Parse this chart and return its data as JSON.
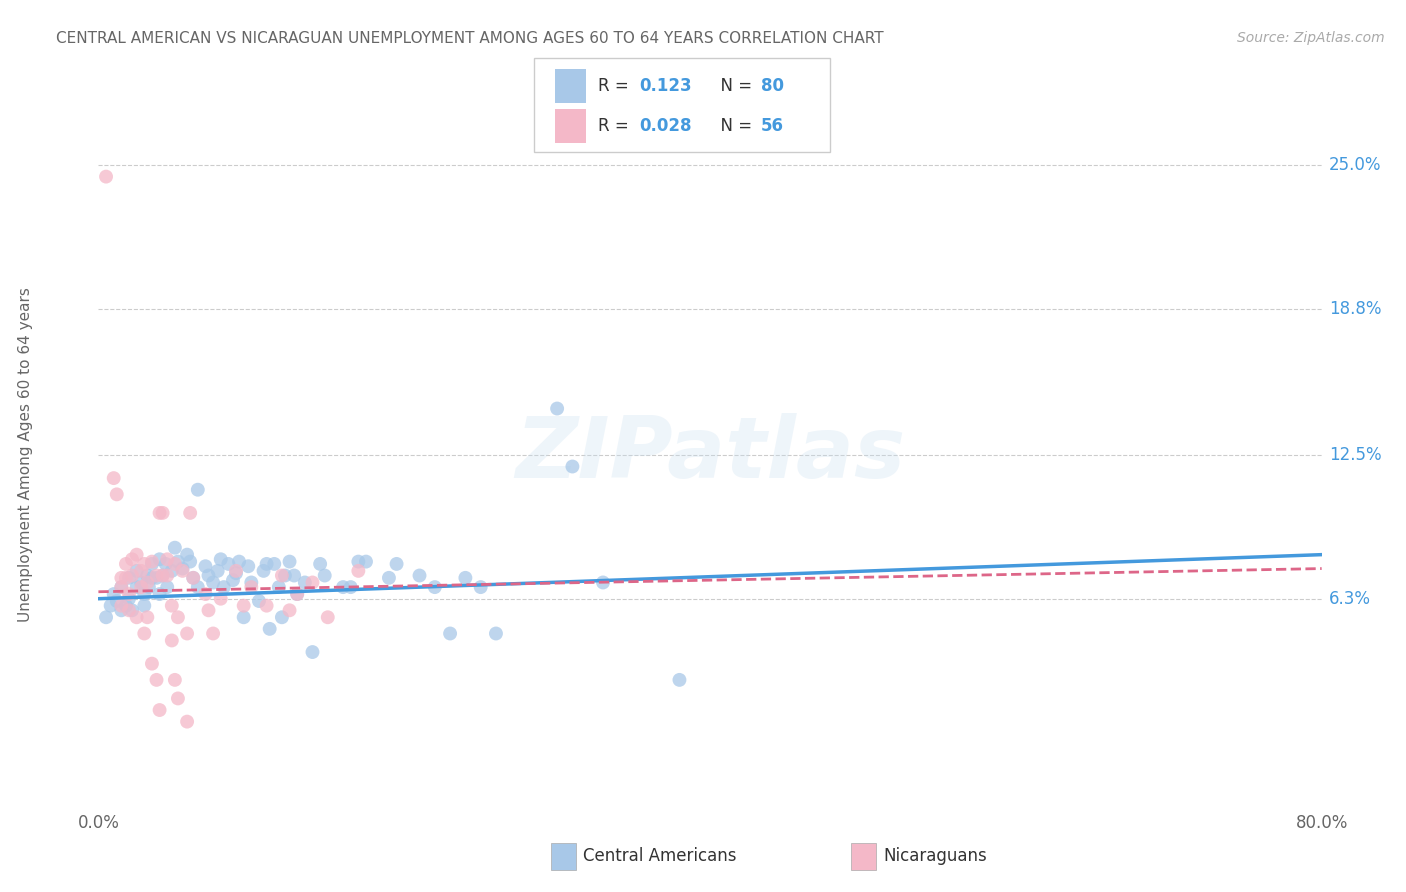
{
  "title": "CENTRAL AMERICAN VS NICARAGUAN UNEMPLOYMENT AMONG AGES 60 TO 64 YEARS CORRELATION CHART",
  "source": "Source: ZipAtlas.com",
  "ylabel": "Unemployment Among Ages 60 to 64 years",
  "y_tick_labels_right": [
    "25.0%",
    "18.8%",
    "12.5%",
    "6.3%"
  ],
  "y_tick_values_right": [
    0.25,
    0.188,
    0.125,
    0.063
  ],
  "xlim": [
    0.0,
    0.8
  ],
  "ylim": [
    -0.025,
    0.275
  ],
  "blue_color": "#a8c8e8",
  "pink_color": "#f4b8c8",
  "blue_line_color": "#4499dd",
  "pink_line_color": "#dd6688",
  "legend_blue_R": "0.123",
  "legend_blue_N": "80",
  "legend_pink_R": "0.028",
  "legend_pink_N": "56",
  "legend_label_blue": "Central Americans",
  "legend_label_pink": "Nicaraguans",
  "legend_text_color": "#4499dd",
  "blue_trend_start_x": 0.0,
  "blue_trend_start_y": 0.063,
  "blue_trend_end_x": 0.8,
  "blue_trend_end_y": 0.082,
  "pink_trend_start_x": 0.0,
  "pink_trend_start_y": 0.066,
  "pink_trend_end_x": 0.8,
  "pink_trend_end_y": 0.076,
  "watermark": "ZIPatlas",
  "background_color": "#ffffff",
  "grid_color": "#cccccc",
  "title_color": "#666666",
  "right_label_color": "#4499dd",
  "blue_scatter": [
    [
      0.005,
      0.055
    ],
    [
      0.008,
      0.06
    ],
    [
      0.01,
      0.065
    ],
    [
      0.012,
      0.062
    ],
    [
      0.015,
      0.058
    ],
    [
      0.015,
      0.068
    ],
    [
      0.018,
      0.06
    ],
    [
      0.02,
      0.072
    ],
    [
      0.02,
      0.063
    ],
    [
      0.022,
      0.058
    ],
    [
      0.025,
      0.075
    ],
    [
      0.025,
      0.068
    ],
    [
      0.028,
      0.07
    ],
    [
      0.03,
      0.065
    ],
    [
      0.03,
      0.06
    ],
    [
      0.032,
      0.073
    ],
    [
      0.033,
      0.068
    ],
    [
      0.035,
      0.072
    ],
    [
      0.035,
      0.078
    ],
    [
      0.038,
      0.072
    ],
    [
      0.04,
      0.065
    ],
    [
      0.04,
      0.08
    ],
    [
      0.042,
      0.073
    ],
    [
      0.044,
      0.078
    ],
    [
      0.045,
      0.068
    ],
    [
      0.048,
      0.075
    ],
    [
      0.05,
      0.085
    ],
    [
      0.052,
      0.079
    ],
    [
      0.055,
      0.076
    ],
    [
      0.058,
      0.082
    ],
    [
      0.06,
      0.079
    ],
    [
      0.062,
      0.072
    ],
    [
      0.065,
      0.068
    ],
    [
      0.065,
      0.11
    ],
    [
      0.07,
      0.077
    ],
    [
      0.072,
      0.073
    ],
    [
      0.075,
      0.07
    ],
    [
      0.078,
      0.075
    ],
    [
      0.08,
      0.08
    ],
    [
      0.082,
      0.068
    ],
    [
      0.085,
      0.078
    ],
    [
      0.088,
      0.071
    ],
    [
      0.09,
      0.074
    ],
    [
      0.092,
      0.079
    ],
    [
      0.095,
      0.055
    ],
    [
      0.098,
      0.077
    ],
    [
      0.1,
      0.07
    ],
    [
      0.105,
      0.062
    ],
    [
      0.108,
      0.075
    ],
    [
      0.11,
      0.078
    ],
    [
      0.112,
      0.05
    ],
    [
      0.115,
      0.078
    ],
    [
      0.118,
      0.068
    ],
    [
      0.12,
      0.055
    ],
    [
      0.122,
      0.073
    ],
    [
      0.125,
      0.079
    ],
    [
      0.128,
      0.073
    ],
    [
      0.13,
      0.065
    ],
    [
      0.135,
      0.07
    ],
    [
      0.14,
      0.04
    ],
    [
      0.145,
      0.078
    ],
    [
      0.148,
      0.073
    ],
    [
      0.16,
      0.068
    ],
    [
      0.165,
      0.068
    ],
    [
      0.17,
      0.079
    ],
    [
      0.175,
      0.079
    ],
    [
      0.19,
      0.072
    ],
    [
      0.195,
      0.078
    ],
    [
      0.21,
      0.073
    ],
    [
      0.22,
      0.068
    ],
    [
      0.23,
      0.048
    ],
    [
      0.24,
      0.072
    ],
    [
      0.25,
      0.068
    ],
    [
      0.26,
      0.048
    ],
    [
      0.3,
      0.145
    ],
    [
      0.31,
      0.12
    ],
    [
      0.33,
      0.07
    ],
    [
      0.38,
      0.028
    ]
  ],
  "pink_scatter": [
    [
      0.005,
      0.245
    ],
    [
      0.01,
      0.115
    ],
    [
      0.012,
      0.108
    ],
    [
      0.015,
      0.072
    ],
    [
      0.015,
      0.068
    ],
    [
      0.015,
      0.06
    ],
    [
      0.018,
      0.078
    ],
    [
      0.018,
      0.072
    ],
    [
      0.02,
      0.065
    ],
    [
      0.02,
      0.058
    ],
    [
      0.022,
      0.08
    ],
    [
      0.022,
      0.073
    ],
    [
      0.025,
      0.055
    ],
    [
      0.025,
      0.082
    ],
    [
      0.028,
      0.075
    ],
    [
      0.028,
      0.068
    ],
    [
      0.03,
      0.048
    ],
    [
      0.03,
      0.078
    ],
    [
      0.032,
      0.07
    ],
    [
      0.032,
      0.055
    ],
    [
      0.035,
      0.035
    ],
    [
      0.035,
      0.079
    ],
    [
      0.038,
      0.073
    ],
    [
      0.038,
      0.028
    ],
    [
      0.04,
      0.015
    ],
    [
      0.04,
      0.1
    ],
    [
      0.042,
      0.1
    ],
    [
      0.042,
      0.073
    ],
    [
      0.045,
      0.08
    ],
    [
      0.045,
      0.073
    ],
    [
      0.048,
      0.06
    ],
    [
      0.048,
      0.045
    ],
    [
      0.05,
      0.028
    ],
    [
      0.05,
      0.078
    ],
    [
      0.052,
      0.055
    ],
    [
      0.052,
      0.02
    ],
    [
      0.055,
      0.075
    ],
    [
      0.058,
      0.048
    ],
    [
      0.058,
      0.01
    ],
    [
      0.06,
      0.1
    ],
    [
      0.062,
      0.072
    ],
    [
      0.07,
      0.065
    ],
    [
      0.072,
      0.058
    ],
    [
      0.075,
      0.048
    ],
    [
      0.08,
      0.063
    ],
    [
      0.09,
      0.075
    ],
    [
      0.095,
      0.06
    ],
    [
      0.1,
      0.068
    ],
    [
      0.11,
      0.06
    ],
    [
      0.12,
      0.073
    ],
    [
      0.125,
      0.058
    ],
    [
      0.13,
      0.065
    ],
    [
      0.14,
      0.07
    ],
    [
      0.15,
      0.055
    ],
    [
      0.17,
      0.075
    ]
  ]
}
